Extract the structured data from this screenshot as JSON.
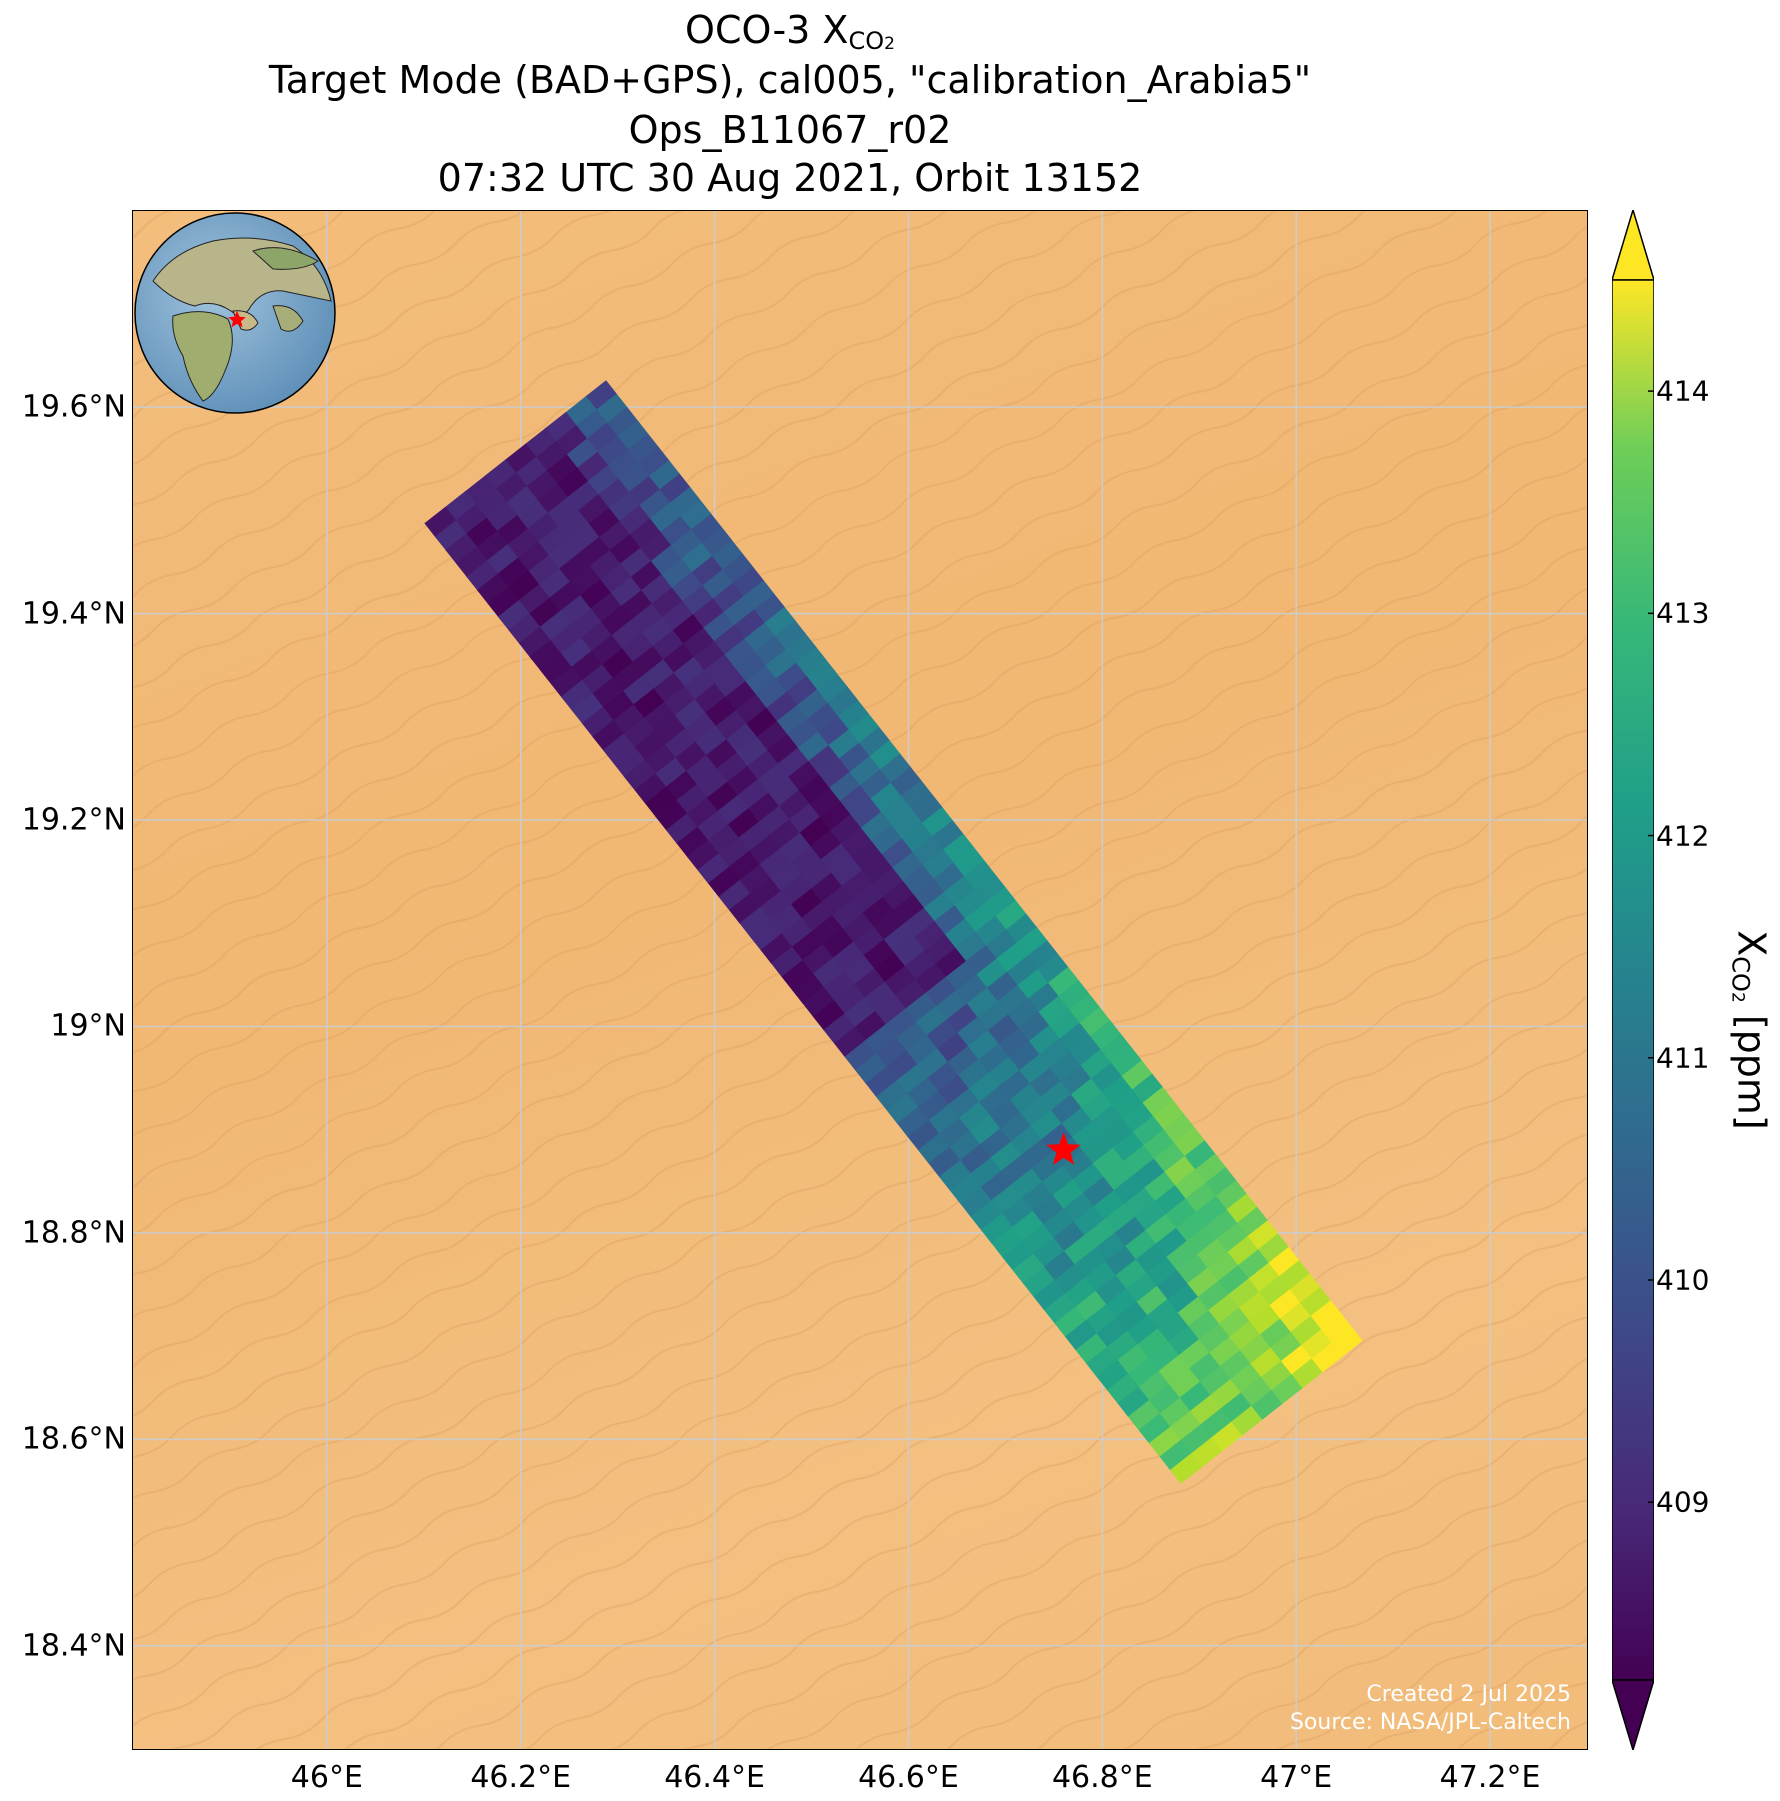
{
  "title": {
    "line1_prefix": "OCO-3 X",
    "line1_sub": "CO",
    "line1_sub2": "2",
    "line2": "Target Mode (BAD+GPS), cal005, \"calibration_Arabia5\"",
    "line3": "Ops_B11067_r02",
    "line4": "07:32 UTC 30 Aug 2021, Orbit 13152"
  },
  "map": {
    "lon_range": [
      45.8,
      47.3
    ],
    "lat_range": [
      18.3,
      19.79
    ],
    "lon_ticks": [
      46.0,
      46.2,
      46.4,
      46.6,
      46.8,
      47.0,
      47.2
    ],
    "lon_tick_labels": [
      "46°E",
      "46.2°E",
      "46.4°E",
      "46.6°E",
      "46.8°E",
      "47°E",
      "47.2°E"
    ],
    "lat_ticks": [
      18.4,
      18.6,
      18.8,
      19.0,
      19.2,
      19.4,
      19.6
    ],
    "lat_tick_labels": [
      "18.4°N",
      "18.6°N",
      "18.8°N",
      "19°N",
      "19.2°N",
      "19.4°N",
      "19.6°N"
    ],
    "target_marker": {
      "lon": 46.76,
      "lat": 18.88,
      "color": "#ff0000"
    },
    "gridline_color": "#cccccc",
    "swath_colormap": "viridis"
  },
  "colorbar": {
    "min": 408.2,
    "max": 414.5,
    "ticks": [
      409,
      410,
      411,
      412,
      413,
      414
    ],
    "tick_labels": [
      "409",
      "410",
      "411",
      "412",
      "413",
      "414"
    ],
    "label_prefix": "X",
    "label_sub": "CO",
    "label_sub2": "2",
    "label_suffix": " [ppm]",
    "extend": "both"
  },
  "credit": {
    "line1": "Created 2 Jul 2025",
    "line2": "Source: NASA/JPL-Caltech"
  },
  "inset_globe": {
    "marker_color": "#ff0000"
  }
}
